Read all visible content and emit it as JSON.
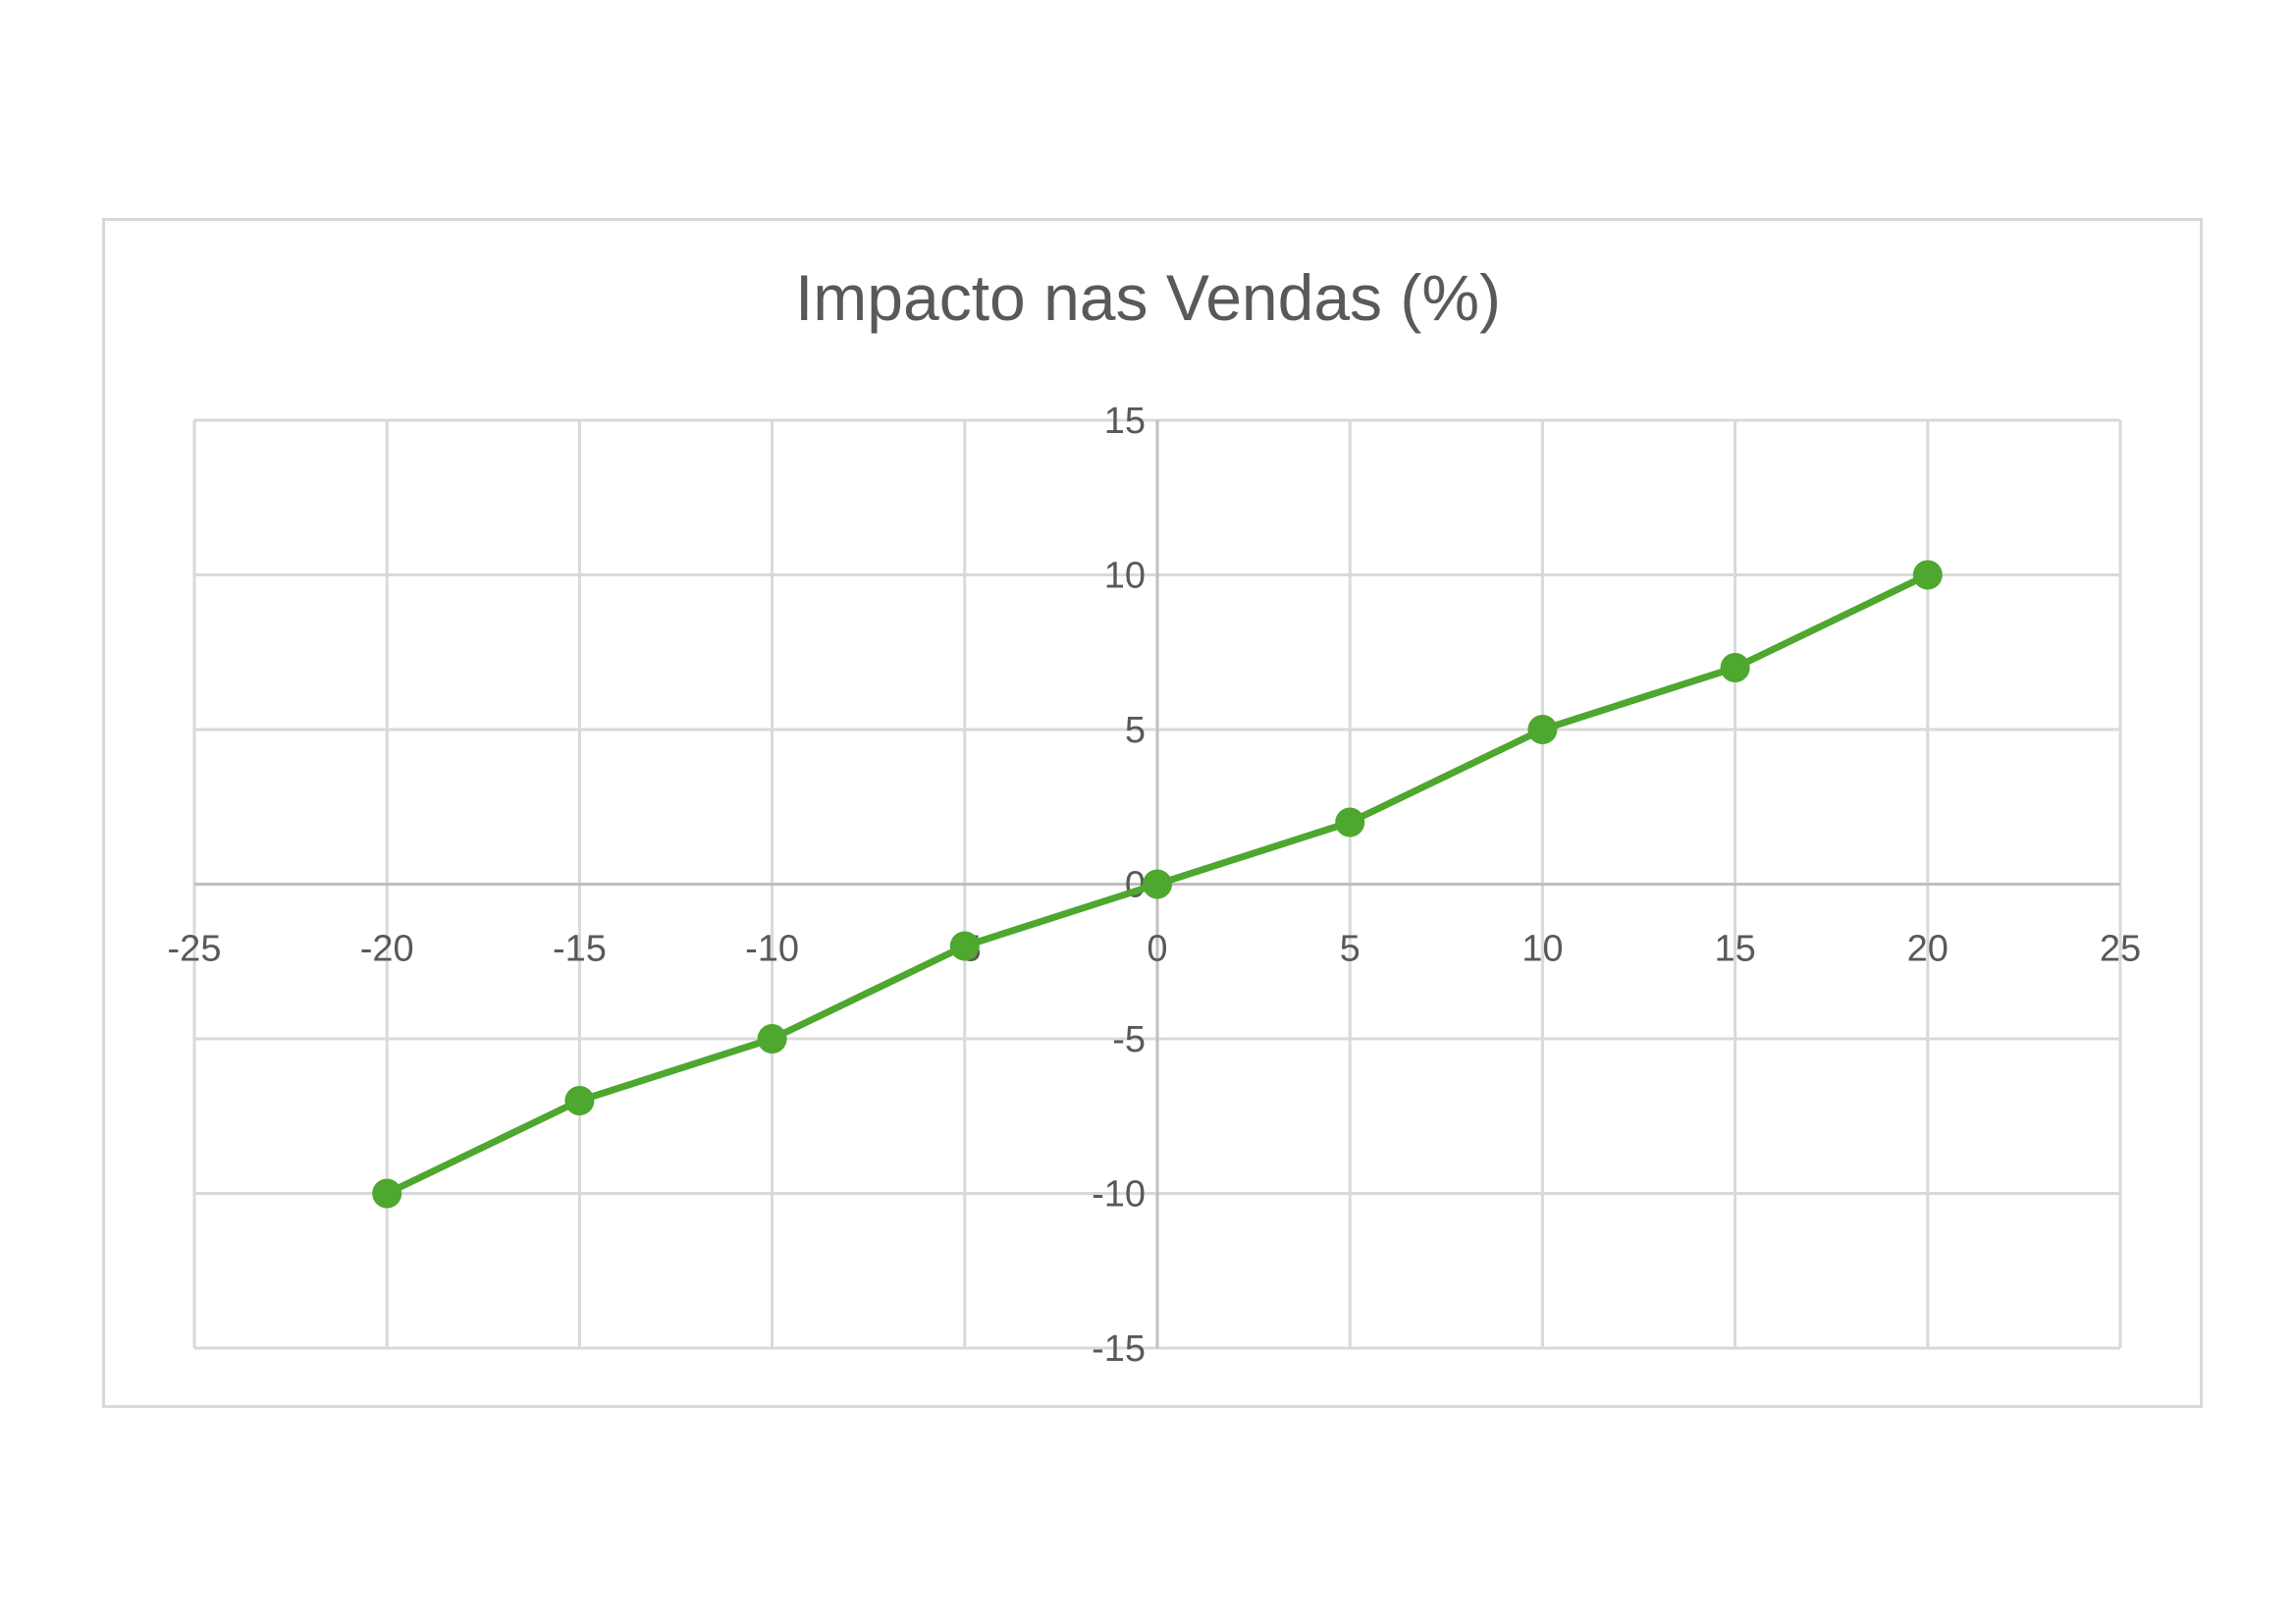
{
  "chart_data": {
    "type": "scatter",
    "title": "Impacto nas Vendas (%)",
    "xlabel": "",
    "ylabel": "",
    "xlim": [
      -25,
      25
    ],
    "ylim": [
      -15,
      15
    ],
    "x_ticks": [
      -25,
      -20,
      -15,
      -10,
      -5,
      0,
      5,
      10,
      15,
      20,
      25
    ],
    "y_ticks": [
      -15,
      -10,
      -5,
      0,
      5,
      10,
      15
    ],
    "grid": true,
    "legend": "none",
    "series": [
      {
        "x": [
          -20,
          -15,
          -10,
          -5,
          0,
          5,
          10,
          15,
          20
        ],
        "y": [
          -10,
          -7,
          -5,
          -2,
          0,
          2,
          5,
          7,
          10
        ],
        "color": "#4ea72e",
        "markers": true,
        "line": true
      }
    ],
    "colors": {
      "grid": "#d9d9d9",
      "axis": "#bfbfbf",
      "text": "#595959"
    }
  }
}
